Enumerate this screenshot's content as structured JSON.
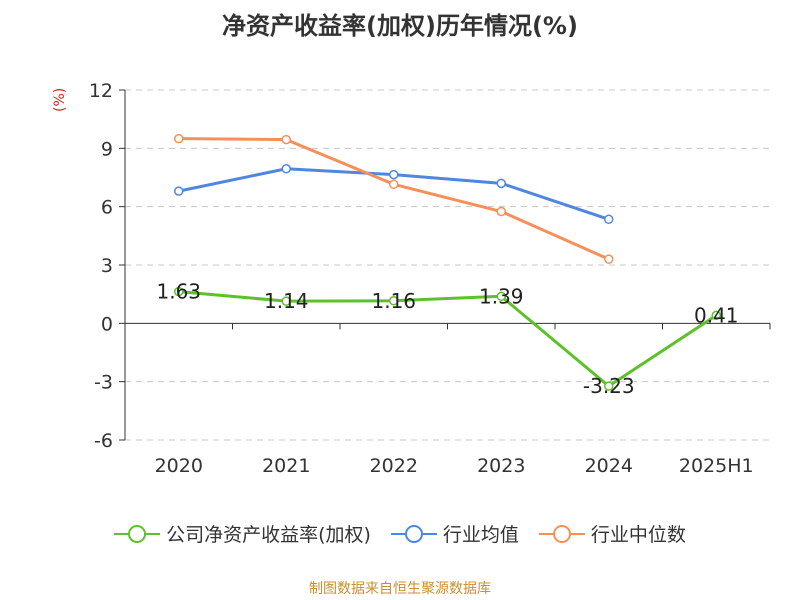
{
  "chart_data": {
    "type": "line",
    "title": "净资产收益率(加权)历年情况(%)",
    "ylabel": "(%)",
    "categories": [
      "2020",
      "2021",
      "2022",
      "2023",
      "2024",
      "2025H1"
    ],
    "ylim": [
      -6,
      12
    ],
    "yticks": [
      12,
      9,
      6,
      3,
      0,
      -3,
      -6
    ],
    "grid": true,
    "legend_position": "bottom",
    "series": [
      {
        "name": "公司净资产收益率(加权)",
        "color": "#5cc228",
        "values": [
          1.63,
          1.14,
          1.16,
          1.39,
          -3.23,
          0.41
        ],
        "labels": [
          "1.63",
          "1.14",
          "1.16",
          "1.39",
          "-3.23",
          "0.41"
        ]
      },
      {
        "name": "行业均值",
        "color": "#4f86e0",
        "values": [
          6.8,
          7.95,
          7.65,
          7.2,
          5.35,
          null
        ]
      },
      {
        "name": "行业中位数",
        "color": "#f5905a",
        "values": [
          9.5,
          9.45,
          7.15,
          5.75,
          3.3,
          null
        ]
      }
    ]
  },
  "source": "制图数据来自恒生聚源数据库"
}
